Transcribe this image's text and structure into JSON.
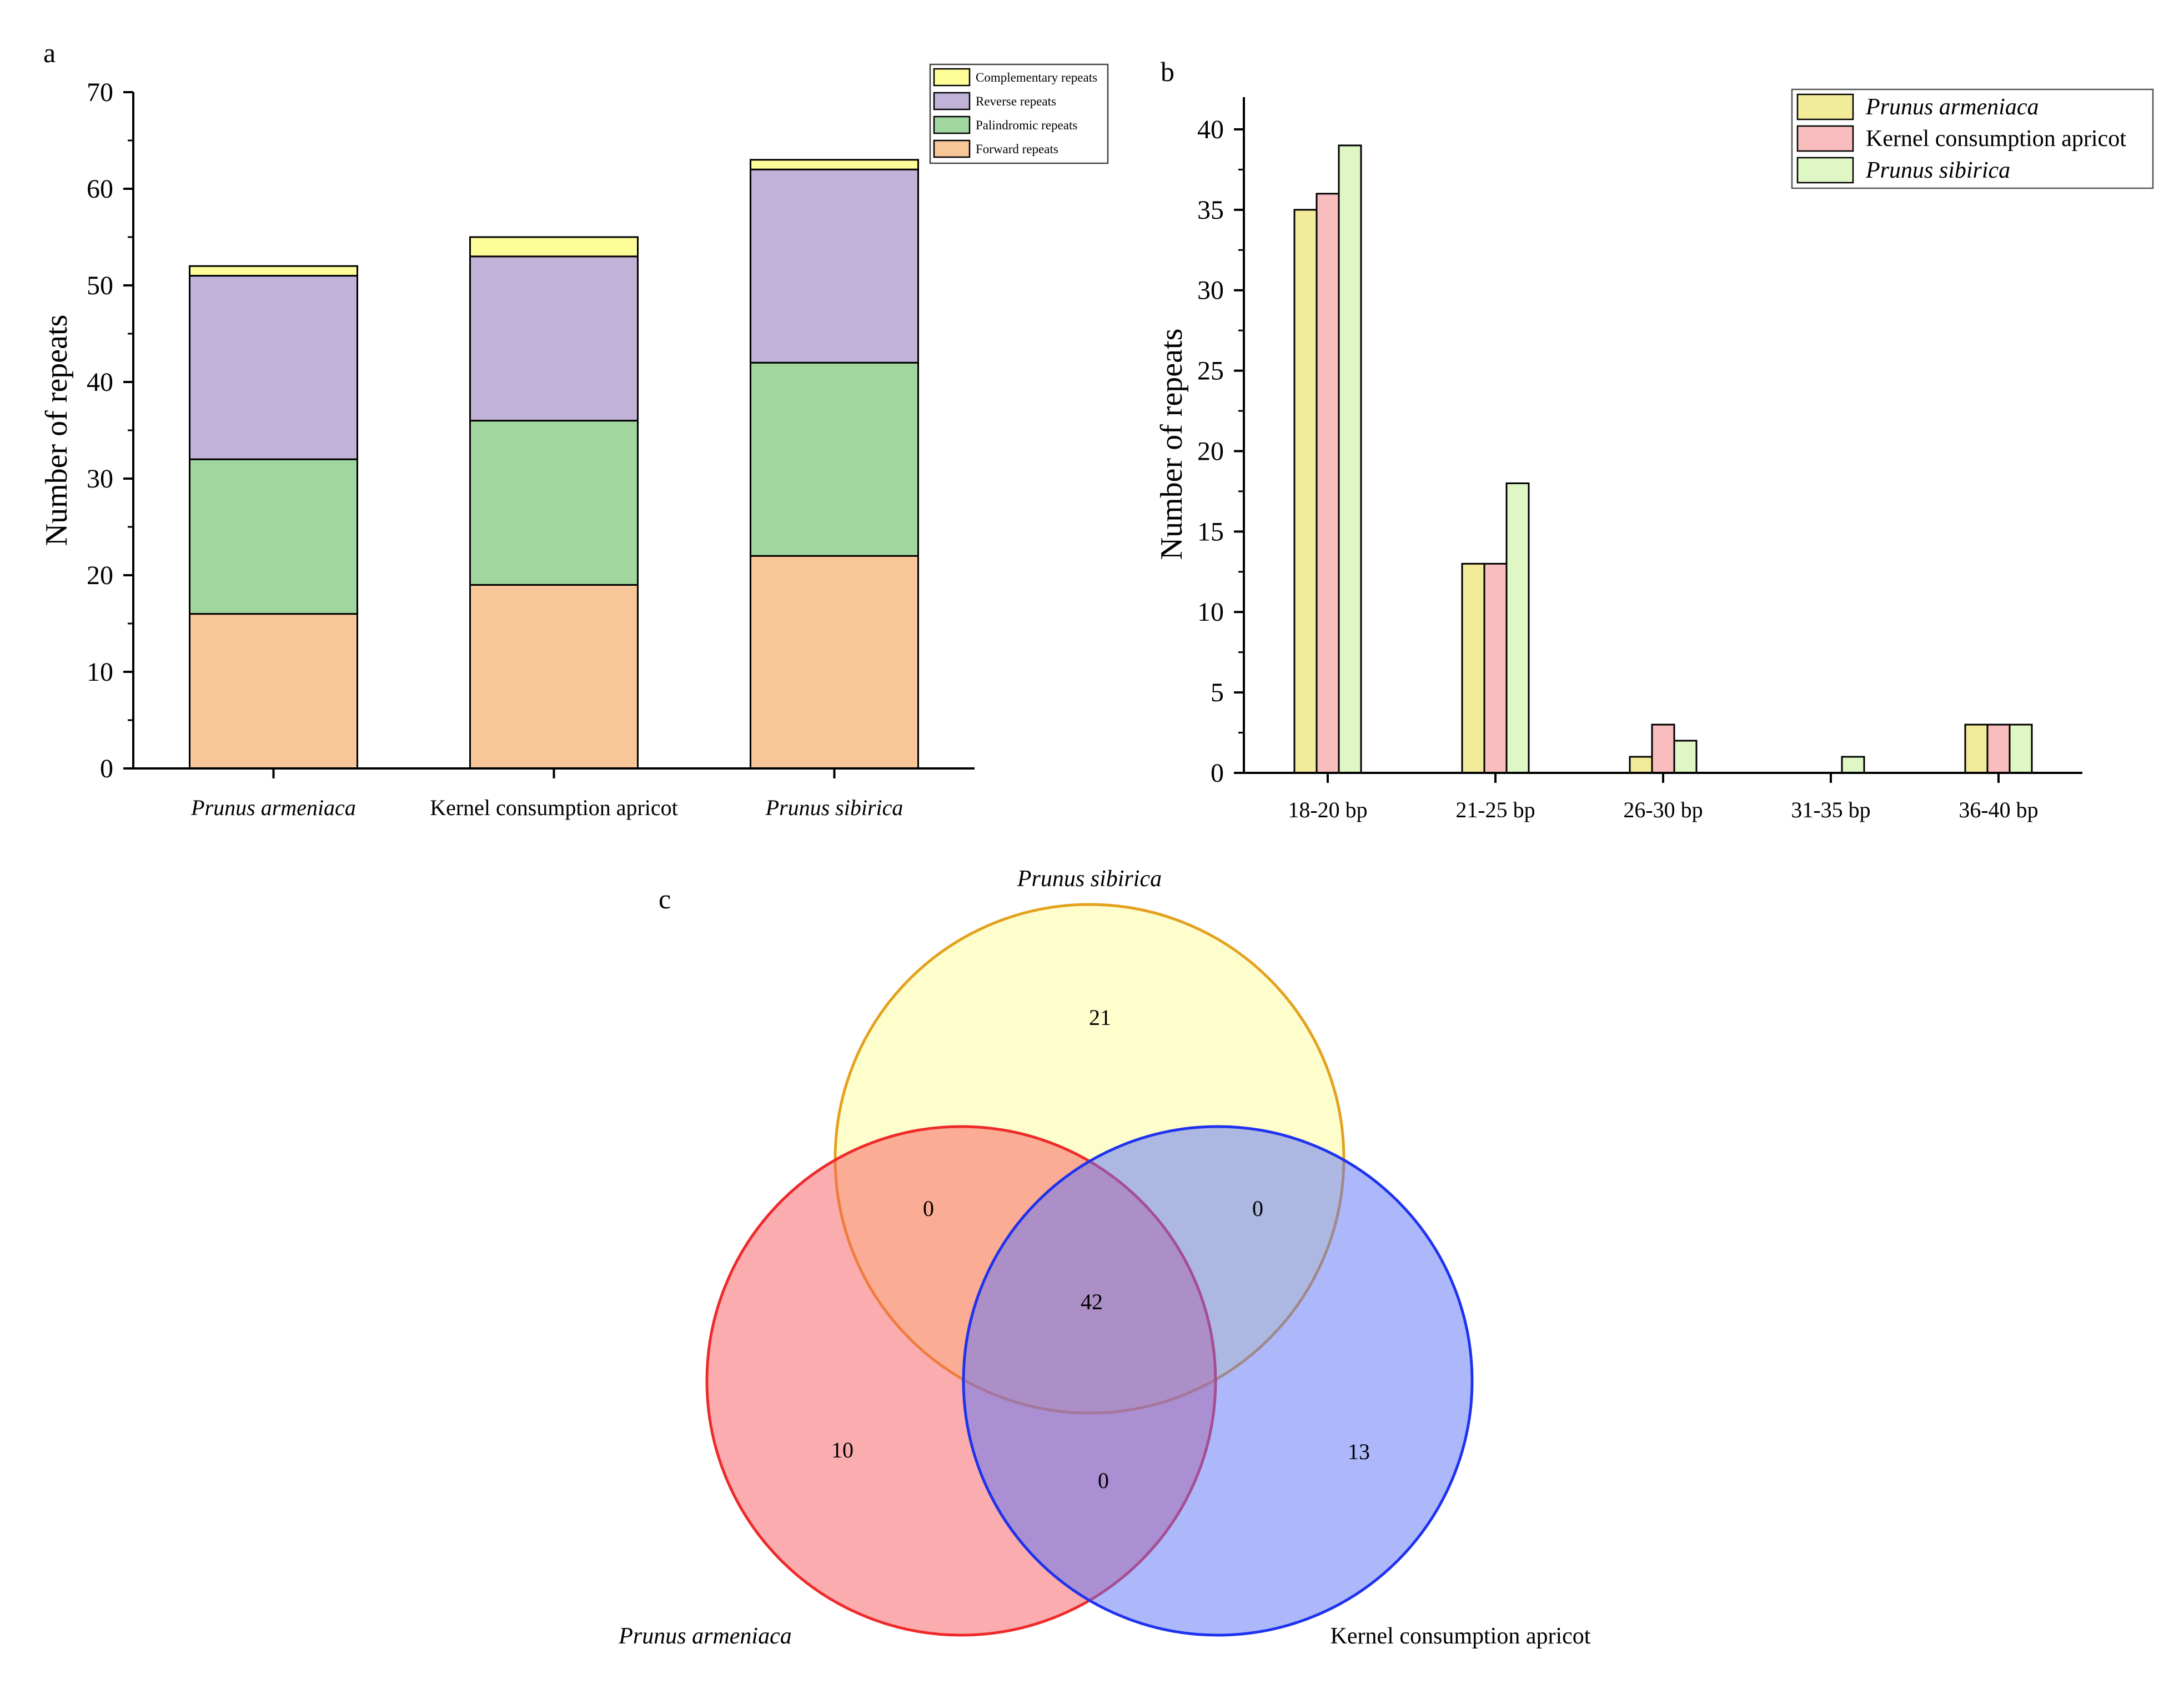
{
  "colors": {
    "forward": "#F9C699",
    "palindromic": "#A1D79F",
    "reverse": "#C1B2D7",
    "complementary": "#FEFE99",
    "prunus_armeniaca": "#F2EB99",
    "kernel_apricot": "#F9BDBD",
    "prunus_sibirica": "#DFF6C5",
    "venn_sibirica_fill": "#FEFE99",
    "venn_sibirica_stroke": "#E4A11E",
    "venn_armeniaca_fill": "#F75A5E",
    "venn_armeniaca_stroke": "#EF2A2A",
    "venn_kernel_fill": "#5C72F8",
    "venn_kernel_stroke": "#1F33EE"
  },
  "chart_data": [
    {
      "panel_label": "a",
      "type": "bar",
      "stacked": true,
      "categories": [
        "Prunus armeniaca",
        "Kernel consumption apricot",
        "Prunus sibirica"
      ],
      "category_italic": [
        true,
        false,
        true
      ],
      "series": [
        {
          "name": "Forward repeats",
          "color_key": "forward",
          "values": [
            16,
            19,
            22
          ]
        },
        {
          "name": "Palindromic repeats",
          "color_key": "palindromic",
          "values": [
            16,
            17,
            20
          ]
        },
        {
          "name": "Reverse repeats",
          "color_key": "reverse",
          "values": [
            19,
            17,
            20
          ]
        },
        {
          "name": "Complementary repeats",
          "color_key": "complementary",
          "values": [
            1,
            2,
            1
          ]
        }
      ],
      "legend_order": [
        "Complementary repeats",
        "Reverse repeats",
        "Palindromic repeats",
        "Forward repeats"
      ],
      "ylabel": "Number of repeats",
      "xlabel": "",
      "ylim": [
        0,
        70
      ],
      "yticks": [
        "0",
        "10",
        "20",
        "30",
        "40",
        "50",
        "60",
        "70"
      ],
      "legend_position": "top-right"
    },
    {
      "panel_label": "b",
      "type": "bar",
      "stacked": false,
      "categories": [
        "18-20 bp",
        "21-25 bp",
        "26-30 bp",
        "31-35 bp",
        "36-40 bp"
      ],
      "series": [
        {
          "name": "Prunus armeniaca",
          "italic": true,
          "color_key": "prunus_armeniaca",
          "values": [
            35,
            13,
            1,
            0,
            3
          ]
        },
        {
          "name": "Kernel consumption apricot",
          "italic": false,
          "color_key": "kernel_apricot",
          "values": [
            36,
            13,
            3,
            0,
            3
          ]
        },
        {
          "name": "Prunus sibirica",
          "italic": true,
          "color_key": "prunus_sibirica",
          "values": [
            39,
            18,
            2,
            1,
            3
          ]
        }
      ],
      "ylabel": "Number of repeats",
      "xlabel": "",
      "ylim": [
        0,
        42
      ],
      "yticks": [
        "0",
        "5",
        "10",
        "15",
        "20",
        "25",
        "30",
        "35",
        "40"
      ],
      "legend_position": "top-right"
    },
    {
      "panel_label": "c",
      "type": "venn",
      "sets": [
        "Prunus sibirica",
        "Prunus armeniaca",
        "Kernel consumption apricot"
      ],
      "regions": {
        "sibirica_only": "21",
        "armeniaca_only": "10",
        "kernel_only": "13",
        "sibirica_armeniaca": "0",
        "sibirica_kernel": "0",
        "armeniaca_kernel": "0",
        "all_three": "42"
      }
    }
  ]
}
